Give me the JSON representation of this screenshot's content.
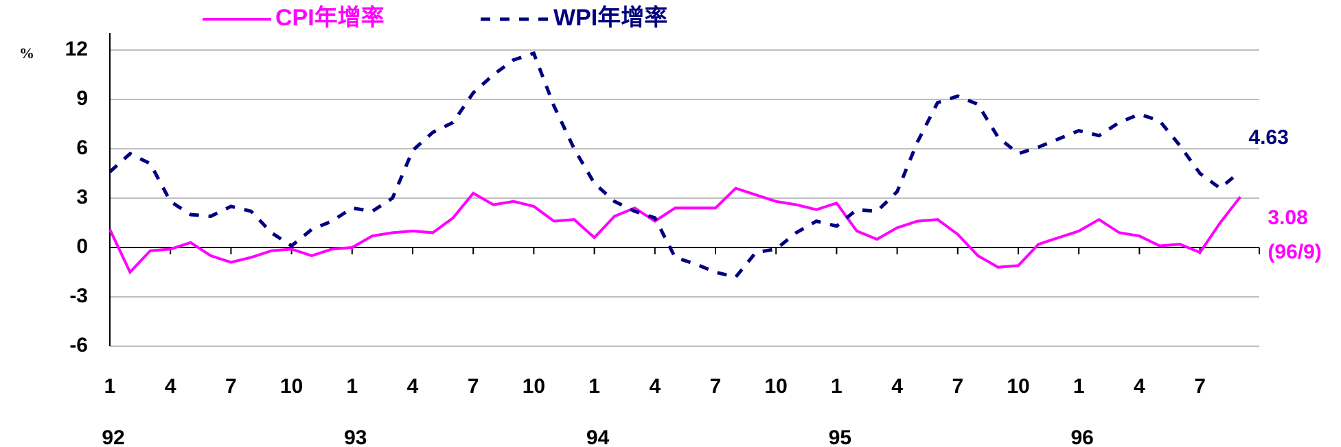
{
  "chart_data": {
    "type": "line",
    "y_label": "%",
    "categories": [
      "1",
      null,
      null,
      "4",
      null,
      null,
      "7",
      null,
      null,
      "10",
      null,
      null,
      "1",
      null,
      null,
      "4",
      null,
      null,
      "7",
      null,
      null,
      "10",
      null,
      null,
      "1",
      null,
      null,
      "4",
      null,
      null,
      "7",
      null,
      null,
      "10",
      null,
      null,
      "1",
      null,
      null,
      "4",
      null,
      null,
      "7",
      null,
      null,
      "10",
      null,
      null,
      "1",
      null,
      null,
      "4",
      null,
      null,
      "7",
      null,
      null
    ],
    "years": [
      "92",
      "93",
      "94",
      "95",
      "96"
    ],
    "series": [
      {
        "name": "CPI年增率",
        "color": "#ff00ff",
        "dash": false,
        "values": [
          1.1,
          -1.5,
          -0.2,
          -0.1,
          0.3,
          -0.5,
          -0.9,
          -0.6,
          -0.2,
          -0.1,
          -0.5,
          -0.1,
          0.0,
          0.7,
          0.9,
          1.0,
          0.9,
          1.8,
          3.3,
          2.6,
          2.8,
          2.5,
          1.6,
          1.7,
          0.6,
          1.9,
          2.4,
          1.6,
          2.4,
          2.4,
          2.4,
          3.6,
          3.2,
          2.8,
          2.6,
          2.3,
          2.7,
          1.0,
          0.5,
          1.2,
          1.6,
          1.7,
          0.8,
          -0.5,
          -1.2,
          -1.1,
          0.2,
          0.6,
          1.0,
          1.7,
          0.9,
          0.7,
          0.1,
          0.2,
          -0.3,
          1.5,
          3.08
        ]
      },
      {
        "name": "WPI年增率",
        "color": "#000080",
        "dash": true,
        "values": [
          4.6,
          5.7,
          5.1,
          2.8,
          2.0,
          1.9,
          2.5,
          2.2,
          0.9,
          0.1,
          1.1,
          1.6,
          2.4,
          2.2,
          3.0,
          5.9,
          7.0,
          7.6,
          9.4,
          10.5,
          11.4,
          11.8,
          8.6,
          6.0,
          3.9,
          2.8,
          2.2,
          1.8,
          -0.6,
          -1.0,
          -1.5,
          -1.8,
          -0.3,
          -0.1,
          0.9,
          1.6,
          1.3,
          2.3,
          2.2,
          3.4,
          6.4,
          8.8,
          9.2,
          8.7,
          6.7,
          5.7,
          6.1,
          6.6,
          7.1,
          6.8,
          7.6,
          8.1,
          7.7,
          6.2,
          4.5,
          3.6,
          4.63
        ]
      }
    ],
    "annotations": [
      {
        "text": "4.63",
        "series": 1
      },
      {
        "text": "3.08",
        "series": 0
      },
      {
        "text": "(96/9)",
        "series": 0
      }
    ],
    "ylim": [
      -6,
      12
    ],
    "yticks": [
      -6,
      -3,
      0,
      3,
      6,
      9,
      12
    ],
    "grid": true
  }
}
